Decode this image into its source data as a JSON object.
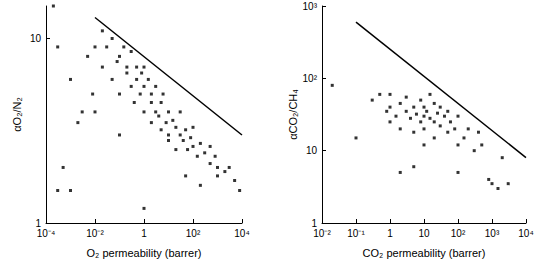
{
  "chart_data": [
    {
      "type": "scatter",
      "log": true,
      "grid": false,
      "x_label": "O₂ permeability (barrer)",
      "y_label": "αO₂/N₂",
      "xlim": [
        0.0001,
        10000
      ],
      "xticks": [
        {
          "value": 0.0001,
          "label": "10⁻⁴"
        },
        {
          "value": 0.01,
          "label": "10⁻²"
        },
        1,
        {
          "value": 100,
          "label": "10²"
        },
        {
          "value": 10000,
          "label": "10⁴"
        }
      ],
      "ylim": [
        1,
        15
      ],
      "yticks": [
        1,
        10
      ],
      "series": [
        {
          "type": "scatter",
          "marker": "square",
          "color": "#000000",
          "x": [
            0.0002,
            0.0003,
            0.0003,
            0.0005,
            0.001,
            0.001,
            0.002,
            0.003,
            0.005,
            0.008,
            0.01,
            0.01,
            0.02,
            0.02,
            0.03,
            0.05,
            0.05,
            0.08,
            0.1,
            0.1,
            0.1,
            0.15,
            0.2,
            0.2,
            0.3,
            0.3,
            0.4,
            0.5,
            0.5,
            0.7,
            0.8,
            1,
            1,
            1,
            1,
            1.5,
            2,
            2,
            2,
            3,
            3,
            4,
            5,
            5,
            6,
            8,
            10,
            10,
            10,
            15,
            20,
            20,
            30,
            30,
            40,
            50,
            50,
            60,
            80,
            100,
            100,
            150,
            200,
            200,
            300,
            500,
            500,
            800,
            1000,
            1000,
            2000,
            3000,
            5000,
            8000
          ],
          "values": [
            15,
            9,
            1.5,
            2,
            6,
            1.5,
            3.5,
            4,
            8,
            5,
            9,
            4,
            7,
            11,
            9,
            6,
            10,
            7.5,
            8,
            5,
            3,
            9,
            6.5,
            7,
            8.5,
            5.5,
            4.5,
            7,
            6,
            5,
            6.5,
            5.5,
            7,
            4,
            1.2,
            6,
            5,
            3.5,
            4.5,
            5.5,
            4,
            3.8,
            4.5,
            3.2,
            5,
            3.5,
            4,
            3,
            2.8,
            3.6,
            3.3,
            2.5,
            3,
            4,
            2.8,
            3.2,
            1.8,
            2.5,
            2.9,
            2.6,
            3.3,
            2.3,
            2.7,
            1.6,
            2.4,
            2.1,
            2.6,
            2.3,
            2,
            1.8,
            1.9,
            2,
            1.7,
            1.5
          ]
        },
        {
          "type": "line",
          "line_style": "solid",
          "color": "#000000",
          "x": [
            0.01,
            10000
          ],
          "values": [
            13,
            3
          ]
        }
      ]
    },
    {
      "type": "scatter",
      "log": true,
      "grid": false,
      "x_label": "CO₂ permeability (barrer)",
      "y_label": "αCO₂/CH₄",
      "xlim": [
        0.01,
        10000
      ],
      "xticks": [
        {
          "value": 0.01,
          "label": "10⁻²"
        },
        {
          "value": 0.1,
          "label": "10⁻¹"
        },
        1,
        10,
        {
          "value": 100,
          "label": "10²"
        },
        {
          "value": 1000,
          "label": "10³"
        },
        {
          "value": 10000,
          "label": "10⁴"
        }
      ],
      "ylim": [
        1,
        1000
      ],
      "yticks": [
        1,
        10,
        {
          "value": 100,
          "label": "10²"
        },
        {
          "value": 1000,
          "label": "10³"
        }
      ],
      "series": [
        {
          "type": "scatter",
          "marker": "square",
          "color": "#000000",
          "x": [
            0.02,
            0.1,
            0.3,
            0.5,
            0.8,
            1,
            1,
            1,
            1.5,
            2,
            2,
            2,
            3,
            3,
            4,
            5,
            5,
            5,
            6,
            8,
            8,
            10,
            10,
            10,
            10,
            12,
            15,
            15,
            20,
            20,
            20,
            25,
            30,
            30,
            40,
            50,
            50,
            60,
            80,
            100,
            100,
            100,
            150,
            200,
            300,
            400,
            500,
            800,
            1000,
            1500,
            2000,
            3000
          ],
          "values": [
            80,
            15,
            50,
            60,
            35,
            40,
            25,
            60,
            30,
            45,
            20,
            5,
            35,
            55,
            28,
            40,
            18,
            6,
            32,
            25,
            50,
            30,
            40,
            20,
            12,
            35,
            28,
            60,
            25,
            45,
            15,
            33,
            22,
            40,
            30,
            18,
            35,
            25,
            20,
            30,
            12,
            5,
            15,
            20,
            10,
            18,
            12,
            4,
            3.5,
            3,
            8,
            3.5
          ]
        },
        {
          "type": "line",
          "line_style": "solid",
          "color": "#000000",
          "x": [
            0.1,
            10000
          ],
          "values": [
            600,
            8
          ]
        }
      ]
    }
  ]
}
